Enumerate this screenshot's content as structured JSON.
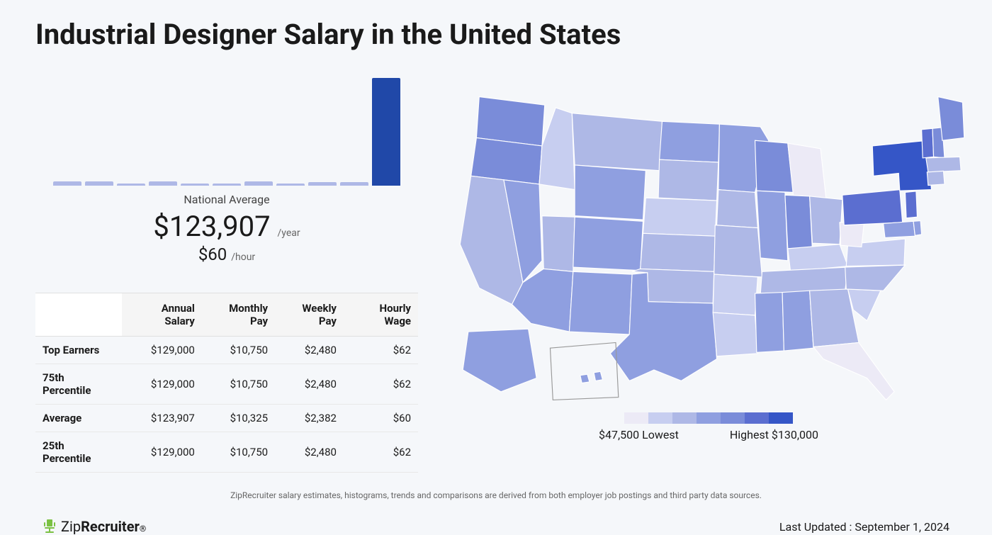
{
  "title": "Industrial Designer Salary in the United States",
  "histogram": {
    "bars": [
      {
        "height_pct": 4,
        "color": "#aeb8e6"
      },
      {
        "height_pct": 4,
        "color": "#aeb8e6"
      },
      {
        "height_pct": 2,
        "color": "#aeb8e6"
      },
      {
        "height_pct": 4,
        "color": "#aeb8e6"
      },
      {
        "height_pct": 2,
        "color": "#aeb8e6"
      },
      {
        "height_pct": 2,
        "color": "#aeb8e6"
      },
      {
        "height_pct": 4,
        "color": "#aeb8e6"
      },
      {
        "height_pct": 2,
        "color": "#aeb8e6"
      },
      {
        "height_pct": 3,
        "color": "#aeb8e6"
      },
      {
        "height_pct": 3,
        "color": "#aeb8e6"
      },
      {
        "height_pct": 95,
        "color": "#2048a8"
      }
    ]
  },
  "national_average": {
    "label": "National Average",
    "annual": "$123,907",
    "annual_unit": "/year",
    "hourly": "$60",
    "hourly_unit": "/hour"
  },
  "table": {
    "columns": [
      "",
      "Annual Salary",
      "Monthly Pay",
      "Weekly Pay",
      "Hourly Wage"
    ],
    "rows": [
      [
        "Top Earners",
        "$129,000",
        "$10,750",
        "$2,480",
        "$62"
      ],
      [
        "75th Percentile",
        "$129,000",
        "$10,750",
        "$2,480",
        "$62"
      ],
      [
        "Average",
        "$123,907",
        "$10,325",
        "$2,382",
        "$60"
      ],
      [
        "25th Percentile",
        "$129,000",
        "$10,750",
        "$2,480",
        "$62"
      ]
    ]
  },
  "map_legend": {
    "colors": [
      "#eceaf6",
      "#c7cef0",
      "#aeb8e6",
      "#8f9fe0",
      "#7a8cd9",
      "#5b6ed0",
      "#3556c7"
    ],
    "lowest_value": "$47,500",
    "lowest_label": "Lowest",
    "highest_label": "Highest",
    "highest_value": "$130,000"
  },
  "disclaimer": "ZipRecruiter salary estimates, histograms, trends and comparisons are derived from both employer job postings and third party data sources.",
  "logo": {
    "brand_first": "Zip",
    "brand_second": "Recruiter",
    "icon_color": "#7bc143"
  },
  "last_updated": "Last Updated : September 1, 2024"
}
